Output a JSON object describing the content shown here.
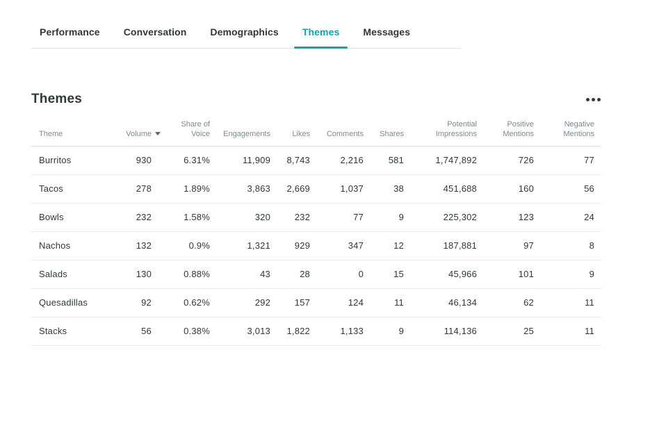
{
  "tabs": {
    "items": [
      {
        "label": "Performance",
        "active": false
      },
      {
        "label": "Conversation",
        "active": false
      },
      {
        "label": "Demographics",
        "active": false
      },
      {
        "label": "Themes",
        "active": true
      },
      {
        "label": "Messages",
        "active": false
      }
    ]
  },
  "section": {
    "title": "Themes",
    "menu_icon": "ellipsis-icon"
  },
  "table": {
    "columns": [
      {
        "label": "Theme",
        "align": "left",
        "sort": null
      },
      {
        "label": "Volume",
        "align": "right",
        "sort": "desc"
      },
      {
        "label": "Share of\nVoice",
        "align": "right",
        "sort": null
      },
      {
        "label": "Engagements",
        "align": "right",
        "sort": null
      },
      {
        "label": "Likes",
        "align": "right",
        "sort": null
      },
      {
        "label": "Comments",
        "align": "right",
        "sort": null
      },
      {
        "label": "Shares",
        "align": "right",
        "sort": null
      },
      {
        "label": "Potential\nImpressions",
        "align": "right",
        "sort": null
      },
      {
        "label": "Positive\nMentions",
        "align": "right",
        "sort": null
      },
      {
        "label": "Negative\nMentions",
        "align": "right",
        "sort": null
      }
    ],
    "rows": [
      [
        "Burritos",
        "930",
        "6.31%",
        "11,909",
        "8,743",
        "2,216",
        "581",
        "1,747,892",
        "726",
        "77"
      ],
      [
        "Tacos",
        "278",
        "1.89%",
        "3,863",
        "2,669",
        "1,037",
        "38",
        "451,688",
        "160",
        "56"
      ],
      [
        "Bowls",
        "232",
        "1.58%",
        "320",
        "232",
        "77",
        "9",
        "225,302",
        "123",
        "24"
      ],
      [
        "Nachos",
        "132",
        "0.9%",
        "1,321",
        "929",
        "347",
        "12",
        "187,881",
        "97",
        "8"
      ],
      [
        "Salads",
        "130",
        "0.88%",
        "43",
        "28",
        "0",
        "15",
        "45,966",
        "101",
        "9"
      ],
      [
        "Quesadillas",
        "92",
        "0.62%",
        "292",
        "157",
        "124",
        "11",
        "46,134",
        "62",
        "11"
      ],
      [
        "Stacks",
        "56",
        "0.38%",
        "3,013",
        "1,822",
        "1,133",
        "9",
        "114,136",
        "25",
        "11"
      ]
    ]
  },
  "colors": {
    "accent_teal": "#14a0af",
    "text_dark": "#2e383a",
    "text_muted": "#7b8a8e",
    "row_border": "#e6eaec"
  }
}
